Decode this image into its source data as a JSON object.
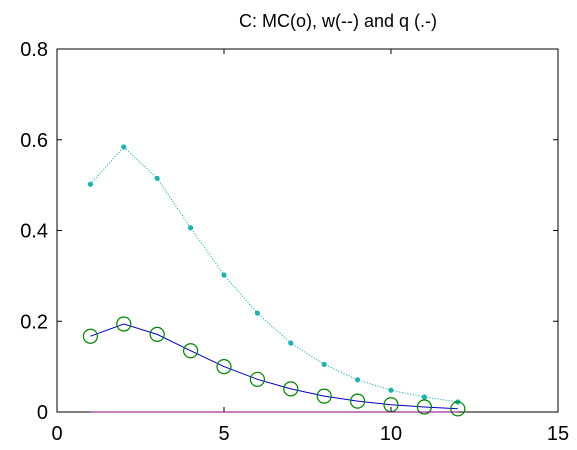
{
  "chart_data": {
    "type": "line",
    "title": "C: MC(o), w(--) and q (.-)",
    "xlabel": "",
    "ylabel": "",
    "xlim": [
      0,
      15
    ],
    "ylim": [
      0,
      0.8
    ],
    "x_ticks": [
      0,
      5,
      10,
      15
    ],
    "x_tick_labels": [
      "0",
      "5",
      "10",
      "15"
    ],
    "y_ticks": [
      0,
      0.2,
      0.4,
      0.6,
      0.8
    ],
    "y_tick_labels": [
      "0",
      "0.2",
      "0.4",
      "0.6",
      "0.8"
    ],
    "grid": false,
    "legend": "none",
    "x": [
      1,
      2,
      3,
      4,
      5,
      6,
      7,
      8,
      9,
      10,
      11,
      12
    ],
    "series": [
      {
        "values": [
          0.502,
          0.584,
          0.515,
          0.406,
          0.302,
          0.218,
          0.152,
          0.105,
          0.071,
          0.048,
          0.033,
          0.022
        ],
        "color": "#20b0b0",
        "line_style": "dotted-line-with-dot-markers",
        "marker": "dot"
      },
      {
        "values": [
          0.167,
          0.194,
          0.171,
          0.135,
          0.1,
          0.072,
          0.051,
          0.035,
          0.024,
          0.016,
          0.011,
          0.007
        ],
        "color": "#0000c0",
        "line_style": "solid",
        "marker": "circle",
        "marker_color": "#008000"
      },
      {
        "values": [
          0,
          0,
          0,
          0,
          0,
          0,
          0,
          0,
          0,
          0,
          0,
          0
        ],
        "color": "#800080",
        "line_style": "solid",
        "marker": "none"
      }
    ]
  }
}
